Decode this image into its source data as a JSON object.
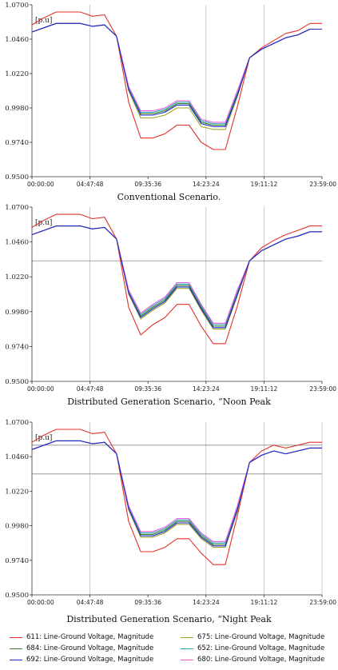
{
  "chart_data": [
    {
      "type": "line",
      "title": "",
      "caption": "Conventional Scenario.",
      "ylabel": "[p.u]",
      "ylim": [
        0.95,
        1.07
      ],
      "yticks": [
        "1.0700",
        "1.0460",
        "1.0220",
        "0.9980",
        "0.9740",
        "0.9500"
      ],
      "xticks": [
        "00:00:00",
        "04:47:48",
        "09:35:36",
        "14:23:24",
        "19:11:12",
        "23:59:00"
      ],
      "x_hours": [
        0,
        1,
        2,
        3,
        4,
        5,
        6,
        7,
        8,
        9,
        10,
        11,
        12,
        13,
        14,
        15,
        16,
        17,
        18,
        19,
        20,
        21,
        22,
        23,
        24
      ],
      "series": [
        {
          "name": "611: Line-Ground Voltage, Magnitude",
          "values": [
            1.056,
            1.061,
            1.065,
            1.065,
            1.065,
            1.062,
            1.063,
            1.048,
            1.002,
            0.977,
            0.977,
            0.98,
            0.986,
            0.986,
            0.974,
            0.969,
            0.969,
            0.999,
            1.033,
            1.04,
            1.045,
            1.05,
            1.052,
            1.057,
            1.057
          ]
        },
        {
          "name": "684: Line-Ground Voltage, Magnitude",
          "values": [
            1.051,
            1.054,
            1.057,
            1.057,
            1.057,
            1.055,
            1.056,
            1.048,
            1.012,
            0.994,
            0.994,
            0.996,
            1.001,
            1.001,
            0.988,
            0.986,
            0.986,
            1.008,
            1.033,
            1.039,
            1.043,
            1.047,
            1.049,
            1.053,
            1.053
          ]
        },
        {
          "name": "692: Line-Ground Voltage, Magnitude",
          "values": [
            1.051,
            1.054,
            1.057,
            1.057,
            1.057,
            1.055,
            1.056,
            1.048,
            1.011,
            0.993,
            0.993,
            0.995,
            1.0,
            1.0,
            0.987,
            0.985,
            0.985,
            1.007,
            1.033,
            1.039,
            1.043,
            1.047,
            1.049,
            1.053,
            1.053
          ]
        },
        {
          "name": "675: Line-Ground Voltage, Magnitude",
          "values": [
            1.051,
            1.054,
            1.057,
            1.057,
            1.057,
            1.055,
            1.056,
            1.048,
            1.01,
            0.991,
            0.991,
            0.993,
            0.998,
            0.998,
            0.985,
            0.983,
            0.983,
            1.006,
            1.033,
            1.039,
            1.043,
            1.047,
            1.049,
            1.053,
            1.053
          ]
        },
        {
          "name": "652: Line-Ground Voltage, Magnitude",
          "values": [
            1.051,
            1.054,
            1.057,
            1.057,
            1.057,
            1.055,
            1.056,
            1.048,
            1.012,
            0.995,
            0.995,
            0.997,
            1.002,
            1.002,
            0.989,
            0.987,
            0.987,
            1.009,
            1.033,
            1.039,
            1.043,
            1.047,
            1.049,
            1.053,
            1.053
          ]
        },
        {
          "name": "680: Line-Ground Voltage, Magnitude",
          "values": [
            1.051,
            1.054,
            1.057,
            1.057,
            1.057,
            1.055,
            1.056,
            1.048,
            1.013,
            0.996,
            0.996,
            0.998,
            1.003,
            1.003,
            0.99,
            0.988,
            0.988,
            1.01,
            1.033,
            1.039,
            1.043,
            1.047,
            1.049,
            1.053,
            1.053
          ]
        }
      ],
      "grid": "few vertical lines at 04:47:48, 14:23:24, 19:11:12"
    },
    {
      "type": "line",
      "title": "",
      "caption": "Distributed Generation Scenario, “Noon Peak",
      "ylabel": "[p.u]",
      "ylim": [
        0.95,
        1.07
      ],
      "yticks": [
        "1.0700",
        "1.0460",
        "1.0220",
        "0.9980",
        "0.9740",
        "0.9500"
      ],
      "xticks": [
        "00:00:00",
        "04:47:48",
        "09:35:36",
        "14:23:24",
        "19:11:12",
        "23:59:00"
      ],
      "x_hours": [
        0,
        1,
        2,
        3,
        4,
        5,
        6,
        7,
        8,
        9,
        10,
        11,
        12,
        13,
        14,
        15,
        16,
        17,
        18,
        19,
        20,
        21,
        22,
        23,
        24
      ],
      "series": [
        {
          "name": "611: Line-Ground Voltage, Magnitude",
          "values": [
            1.056,
            1.061,
            1.065,
            1.065,
            1.065,
            1.062,
            1.063,
            1.048,
            1.001,
            0.982,
            0.989,
            0.994,
            1.003,
            1.003,
            0.988,
            0.976,
            0.976,
            1.002,
            1.033,
            1.042,
            1.047,
            1.051,
            1.054,
            1.057,
            1.057
          ]
        },
        {
          "name": "684: Line-Ground Voltage, Magnitude",
          "values": [
            1.051,
            1.054,
            1.057,
            1.057,
            1.057,
            1.055,
            1.056,
            1.048,
            1.012,
            0.995,
            1.001,
            1.006,
            1.016,
            1.016,
            1.001,
            0.988,
            0.988,
            1.011,
            1.033,
            1.04,
            1.044,
            1.048,
            1.05,
            1.053,
            1.053
          ]
        },
        {
          "name": "692: Line-Ground Voltage, Magnitude",
          "values": [
            1.051,
            1.054,
            1.057,
            1.057,
            1.057,
            1.055,
            1.056,
            1.048,
            1.011,
            0.994,
            1.0,
            1.005,
            1.015,
            1.015,
            1.0,
            0.987,
            0.987,
            1.01,
            1.033,
            1.04,
            1.044,
            1.048,
            1.05,
            1.053,
            1.053
          ]
        },
        {
          "name": "675: Line-Ground Voltage, Magnitude",
          "values": [
            1.051,
            1.054,
            1.057,
            1.057,
            1.057,
            1.055,
            1.056,
            1.048,
            1.01,
            0.993,
            0.999,
            1.004,
            1.014,
            1.014,
            0.999,
            0.986,
            0.986,
            1.009,
            1.033,
            1.04,
            1.044,
            1.048,
            1.05,
            1.053,
            1.053
          ]
        },
        {
          "name": "652: Line-Ground Voltage, Magnitude",
          "values": [
            1.051,
            1.054,
            1.057,
            1.057,
            1.057,
            1.055,
            1.056,
            1.048,
            1.012,
            0.996,
            1.002,
            1.007,
            1.017,
            1.017,
            1.002,
            0.989,
            0.989,
            1.012,
            1.033,
            1.04,
            1.044,
            1.048,
            1.05,
            1.053,
            1.053
          ]
        },
        {
          "name": "680: Line-Ground Voltage, Magnitude",
          "values": [
            1.051,
            1.054,
            1.057,
            1.057,
            1.057,
            1.055,
            1.056,
            1.048,
            1.013,
            0.997,
            1.003,
            1.008,
            1.018,
            1.018,
            1.003,
            0.99,
            0.99,
            1.013,
            1.033,
            1.04,
            1.044,
            1.048,
            1.05,
            1.053,
            1.053
          ]
        }
      ],
      "reference_lines": [
        1.033
      ],
      "grid": "vertical lines at 04:47:48, 14:23:24, 19:11:12; horizontal reference line"
    },
    {
      "type": "line",
      "title": "",
      "caption": "Distributed Generation Scenario, “Night Peak",
      "ylabel": "[p.u]",
      "ylim": [
        0.95,
        1.07
      ],
      "yticks": [
        "1.0700",
        "1.0460",
        "1.0220",
        "0.9980",
        "0.9740",
        "0.9500"
      ],
      "xticks": [
        "00:00:00",
        "04:47:48",
        "09:35:36",
        "14:23:24",
        "19:11:12",
        "23:59:00"
      ],
      "x_hours": [
        0,
        1,
        2,
        3,
        4,
        5,
        6,
        7,
        8,
        9,
        10,
        11,
        12,
        13,
        14,
        15,
        16,
        17,
        18,
        19,
        20,
        21,
        22,
        23,
        24
      ],
      "series": [
        {
          "name": "611: Line-Ground Voltage, Magnitude",
          "values": [
            1.056,
            1.061,
            1.065,
            1.065,
            1.065,
            1.062,
            1.063,
            1.048,
            1.001,
            0.98,
            0.98,
            0.983,
            0.989,
            0.989,
            0.979,
            0.971,
            0.971,
            1.005,
            1.042,
            1.05,
            1.054,
            1.052,
            1.054,
            1.056,
            1.056
          ]
        },
        {
          "name": "684: Line-Ground Voltage, Magnitude",
          "values": [
            1.051,
            1.054,
            1.057,
            1.057,
            1.057,
            1.055,
            1.056,
            1.048,
            1.011,
            0.992,
            0.992,
            0.995,
            1.001,
            1.001,
            0.991,
            0.985,
            0.985,
            1.01,
            1.042,
            1.047,
            1.05,
            1.048,
            1.05,
            1.052,
            1.052
          ]
        },
        {
          "name": "692: Line-Ground Voltage, Magnitude",
          "values": [
            1.051,
            1.054,
            1.057,
            1.057,
            1.057,
            1.055,
            1.056,
            1.048,
            1.01,
            0.991,
            0.991,
            0.994,
            1.0,
            1.0,
            0.99,
            0.984,
            0.984,
            1.009,
            1.042,
            1.047,
            1.05,
            1.048,
            1.05,
            1.052,
            1.052
          ]
        },
        {
          "name": "675: Line-Ground Voltage, Magnitude",
          "values": [
            1.051,
            1.054,
            1.057,
            1.057,
            1.057,
            1.055,
            1.056,
            1.048,
            1.009,
            0.99,
            0.99,
            0.993,
            0.999,
            0.999,
            0.989,
            0.983,
            0.983,
            1.008,
            1.042,
            1.047,
            1.05,
            1.048,
            1.05,
            1.052,
            1.052
          ]
        },
        {
          "name": "652: Line-Ground Voltage, Magnitude",
          "values": [
            1.051,
            1.054,
            1.057,
            1.057,
            1.057,
            1.055,
            1.056,
            1.048,
            1.011,
            0.993,
            0.993,
            0.996,
            1.002,
            1.002,
            0.992,
            0.986,
            0.986,
            1.011,
            1.042,
            1.047,
            1.05,
            1.048,
            1.05,
            1.052,
            1.052
          ]
        },
        {
          "name": "680: Line-Ground Voltage, Magnitude",
          "values": [
            1.051,
            1.054,
            1.057,
            1.057,
            1.057,
            1.055,
            1.056,
            1.048,
            1.012,
            0.994,
            0.994,
            0.997,
            1.003,
            1.003,
            0.993,
            0.987,
            0.987,
            1.012,
            1.042,
            1.047,
            1.05,
            1.048,
            1.05,
            1.052,
            1.052
          ]
        }
      ],
      "reference_lines": [
        1.054,
        1.034
      ],
      "grid": "vertical lines at 04:47:48, 14:23:24, 19:11:12, 23:59:00; two horizontal reference lines"
    }
  ],
  "colors": {
    "611": "#e0332b",
    "684": "#3a7d22",
    "692": "#1d2bc9",
    "675": "#a3a32a",
    "652": "#2fa4b4",
    "680": "#e75be0",
    "grid": "#bdbdbd",
    "axis": "#333333"
  },
  "legend": {
    "items": [
      {
        "key": "611",
        "label": "611: Line-Ground Voltage, Magnitude"
      },
      {
        "key": "675",
        "label": "675: Line-Ground Voltage, Magnitude"
      },
      {
        "key": "684",
        "label": "684: Line-Ground Voltage, Magnitude"
      },
      {
        "key": "652",
        "label": "652: Line-Ground Voltage, Magnitude"
      },
      {
        "key": "692",
        "label": "692: Line-Ground Voltage, Magnitude"
      },
      {
        "key": "680",
        "label": "680: Line-Ground Voltage, Magnitude"
      }
    ]
  }
}
